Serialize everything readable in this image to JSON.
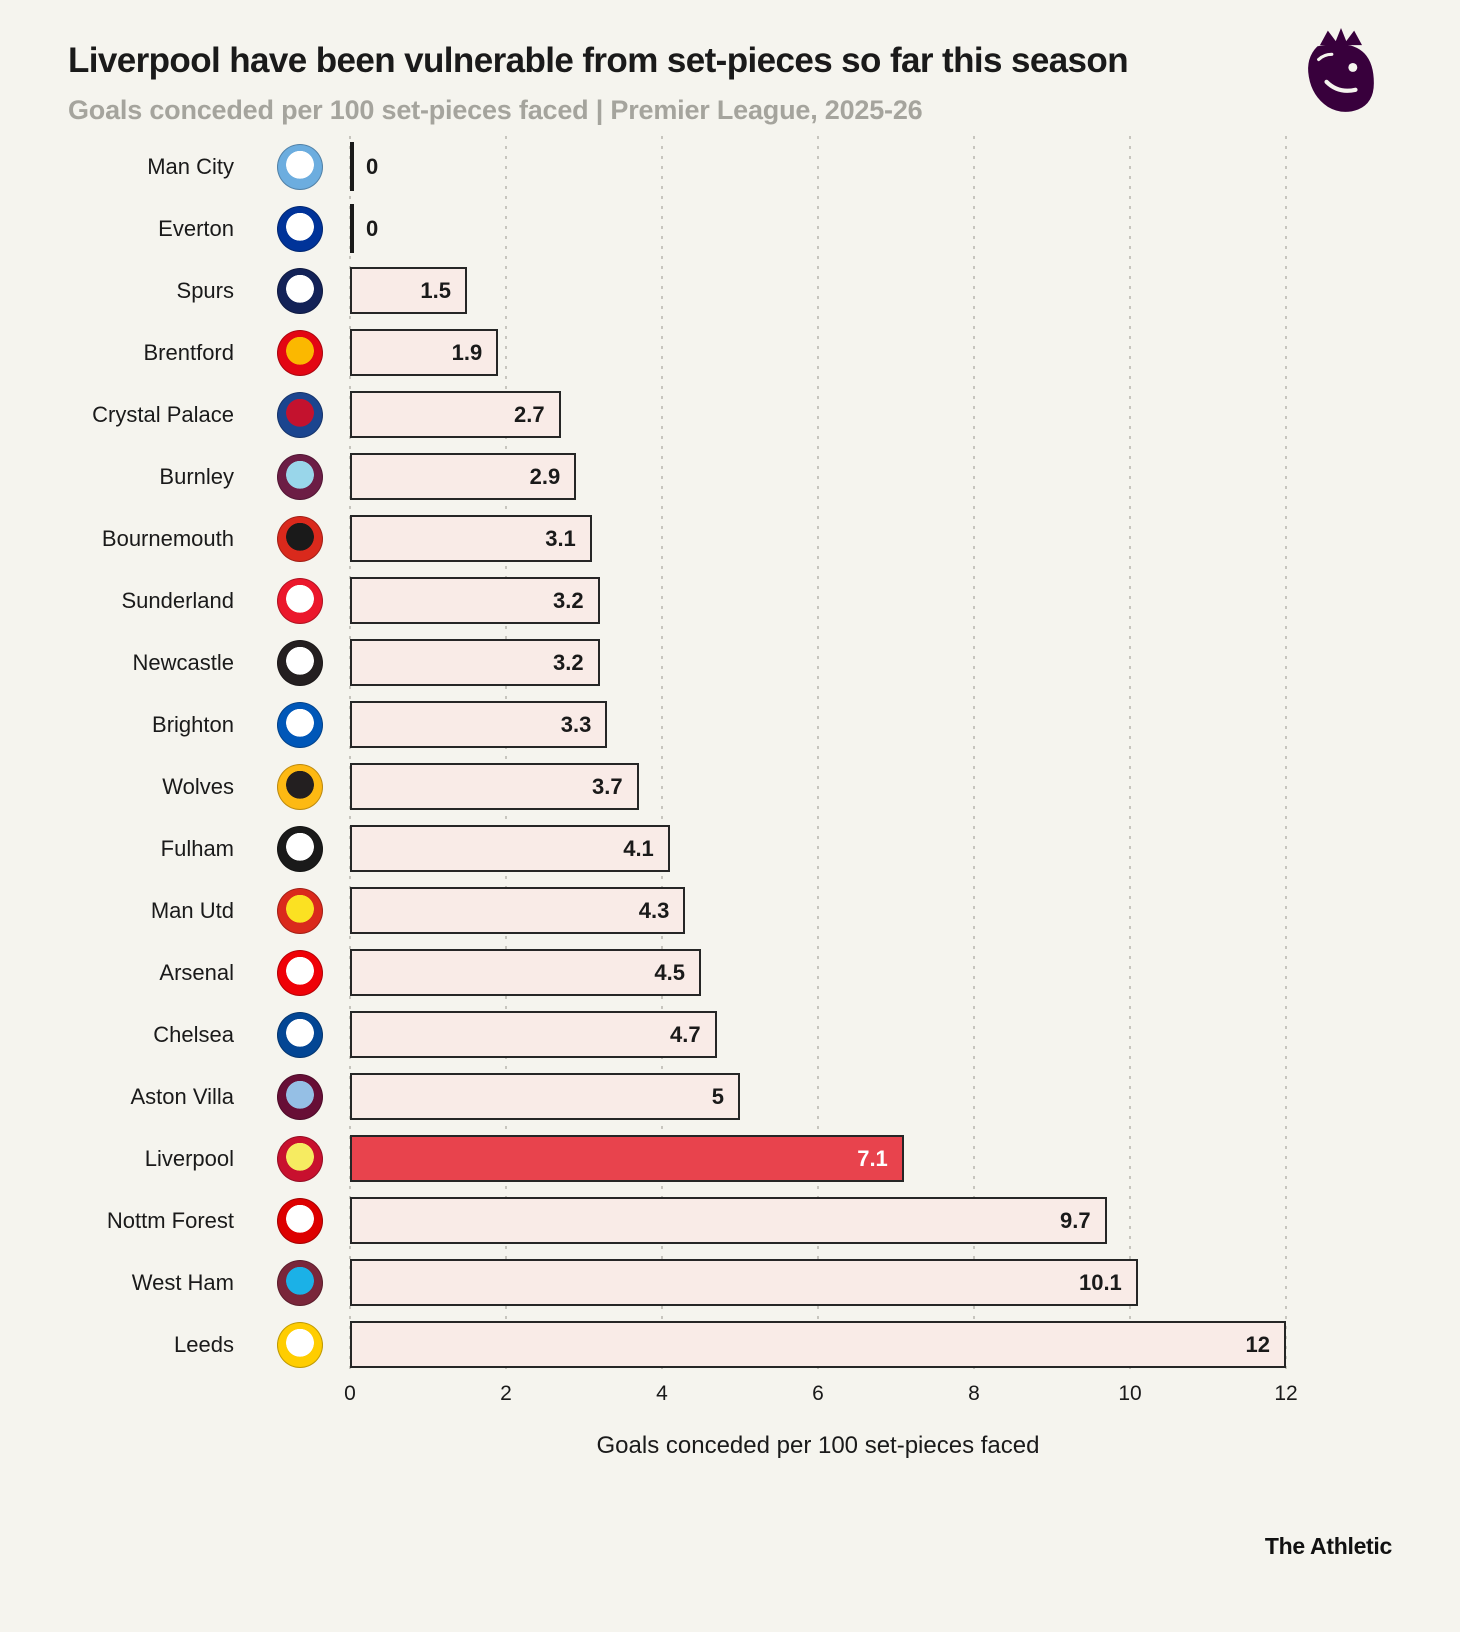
{
  "header": {
    "title": "Liverpool have been vulnerable from set-pieces so far this season",
    "subtitle": "Goals conceded per 100 set-pieces faced | Premier League, 2025-26"
  },
  "footer": {
    "brand": "The Athletic"
  },
  "colors": {
    "background": "#f5f4ee",
    "bar_fill": "#f9ebe7",
    "bar_border": "#262626",
    "highlight_red": "#e8434d",
    "subtitle_gray": "#a5a49d",
    "gridline": "#c7c5be",
    "premier_league_purple": "#38003c"
  },
  "chart_data": {
    "type": "bar",
    "orientation": "horizontal",
    "title": "Liverpool have been vulnerable from set-pieces so far this season",
    "subtitle": "Goals conceded per 100 set-pieces faced | Premier League, 2025-26",
    "xlabel": "Goals conceded per 100 set-pieces faced",
    "xlim": [
      0,
      12
    ],
    "xticks": [
      0,
      2,
      4,
      6,
      8,
      10,
      12
    ],
    "grid": "dotted-vertical",
    "highlight": "Liverpool",
    "teams": [
      {
        "name": "Man City",
        "value": 0,
        "crest": [
          "#6caddf",
          "#ffffff"
        ]
      },
      {
        "name": "Everton",
        "value": 0,
        "crest": [
          "#003399",
          "#ffffff"
        ]
      },
      {
        "name": "Spurs",
        "value": 1.5,
        "crest": [
          "#132257",
          "#ffffff"
        ]
      },
      {
        "name": "Brentford",
        "value": 1.9,
        "crest": [
          "#e30613",
          "#fbb800"
        ]
      },
      {
        "name": "Crystal Palace",
        "value": 2.7,
        "crest": [
          "#1b458f",
          "#c4122e"
        ]
      },
      {
        "name": "Burnley",
        "value": 2.9,
        "crest": [
          "#6c1d45",
          "#99d6ea"
        ]
      },
      {
        "name": "Bournemouth",
        "value": 3.1,
        "crest": [
          "#da291c",
          "#1a1a1a"
        ]
      },
      {
        "name": "Sunderland",
        "value": 3.2,
        "crest": [
          "#eb172b",
          "#ffffff"
        ]
      },
      {
        "name": "Newcastle",
        "value": 3.2,
        "crest": [
          "#241f20",
          "#ffffff"
        ]
      },
      {
        "name": "Brighton",
        "value": 3.3,
        "crest": [
          "#0057b8",
          "#ffffff"
        ]
      },
      {
        "name": "Wolves",
        "value": 3.7,
        "crest": [
          "#fdb913",
          "#231f20"
        ]
      },
      {
        "name": "Fulham",
        "value": 4.1,
        "crest": [
          "#1a1a1a",
          "#ffffff"
        ]
      },
      {
        "name": "Man Utd",
        "value": 4.3,
        "crest": [
          "#da291c",
          "#fbe122"
        ]
      },
      {
        "name": "Arsenal",
        "value": 4.5,
        "crest": [
          "#ef0107",
          "#ffffff"
        ]
      },
      {
        "name": "Chelsea",
        "value": 4.7,
        "crest": [
          "#034694",
          "#ffffff"
        ]
      },
      {
        "name": "Aston Villa",
        "value": 5,
        "crest": [
          "#670e36",
          "#95bfe5"
        ]
      },
      {
        "name": "Liverpool",
        "value": 7.1,
        "crest": [
          "#c8102e",
          "#f6eb61"
        ]
      },
      {
        "name": "Nottm Forest",
        "value": 9.7,
        "crest": [
          "#dd0000",
          "#ffffff"
        ]
      },
      {
        "name": "West Ham",
        "value": 10.1,
        "crest": [
          "#7a263a",
          "#1bb1e7"
        ]
      },
      {
        "name": "Leeds",
        "value": 12,
        "crest": [
          "#ffcd00",
          "#ffffff"
        ]
      }
    ]
  }
}
